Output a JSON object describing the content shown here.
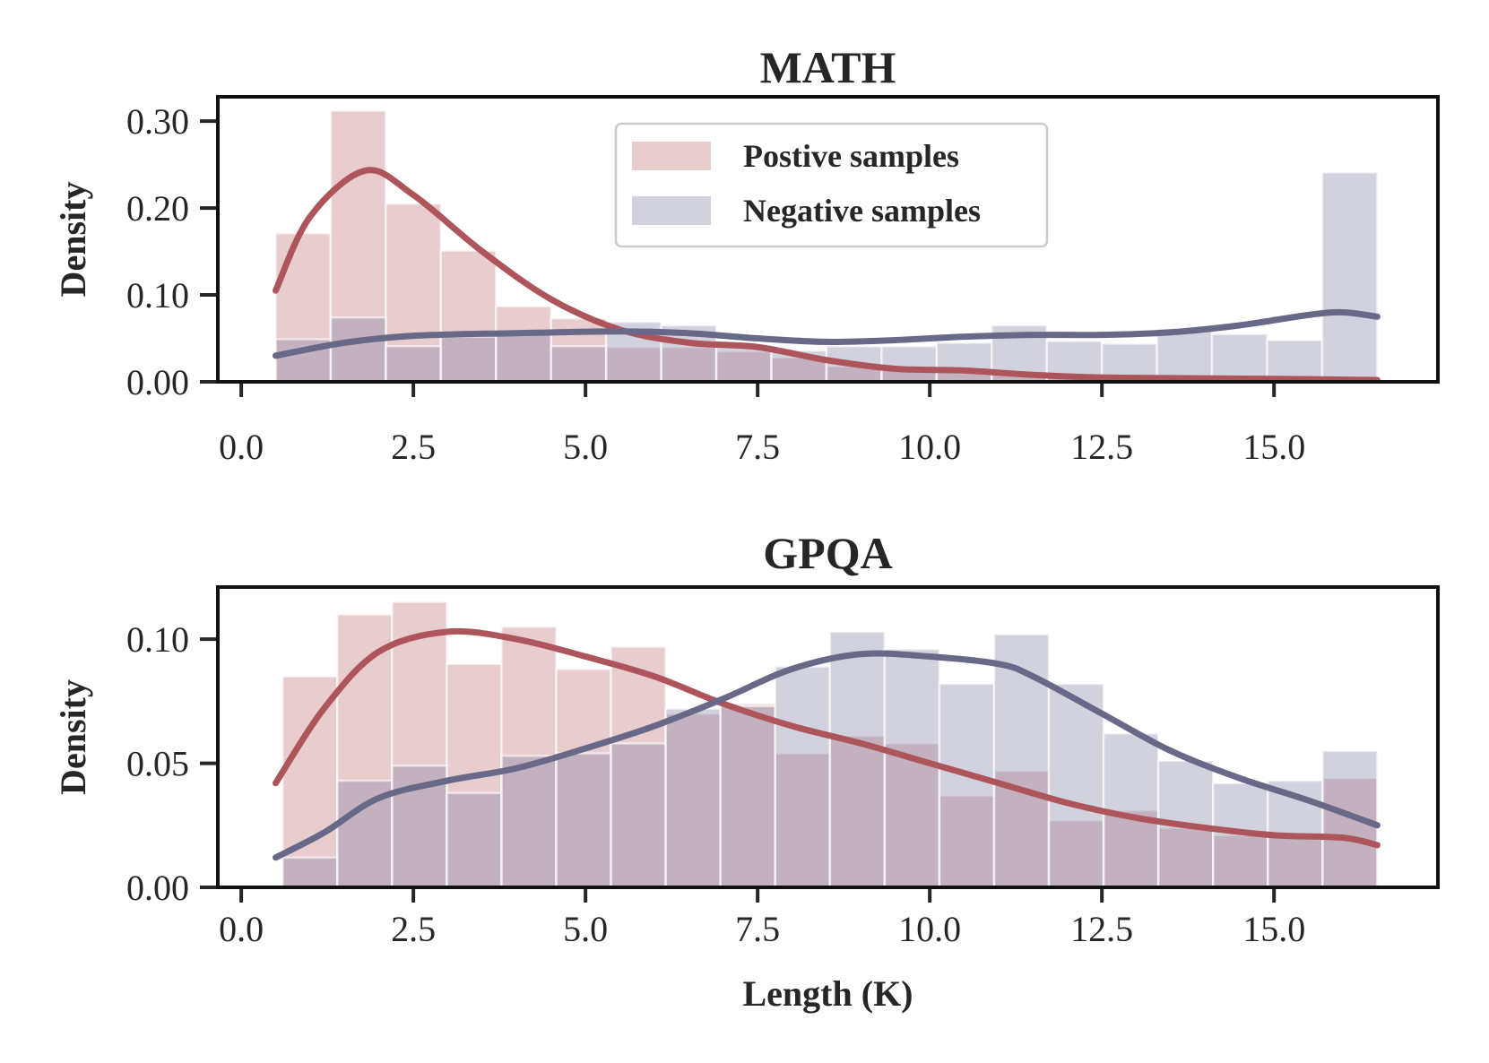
{
  "colors": {
    "positive_bar": "#c06d74",
    "negative_bar": "#7e7fa3",
    "positive_line": "#ad555b",
    "negative_line": "#686889"
  },
  "legend": {
    "placement": "upper-center of top panel",
    "entries": [
      "Postive samples",
      "Negative samples"
    ]
  },
  "chart_data": [
    {
      "type": "bar",
      "subtype": "histogram with KDE",
      "title": "MATH",
      "xlabel": "",
      "ylabel": "Density",
      "xlim": [
        -0.34,
        17.38
      ],
      "ylim": [
        0,
        0.328
      ],
      "xticks": [
        "0.0",
        "2.5",
        "5.0",
        "7.5",
        "10.0",
        "12.5",
        "15.0"
      ],
      "xtick_values": [
        0,
        2.5,
        5,
        7.5,
        10,
        12.5,
        15
      ],
      "yticks": [
        "0.00",
        "0.10",
        "0.20",
        "0.30"
      ],
      "ytick_values": [
        0,
        0.1,
        0.2,
        0.3
      ],
      "bin_start": 0.5,
      "bin_width": 0.8,
      "series": [
        {
          "name": "Postive samples",
          "values": [
            0.171,
            0.312,
            0.205,
            0.151,
            0.087,
            0.073,
            0.04,
            0.04,
            0.035,
            0.028,
            0.018,
            0.015,
            0.012,
            0.01,
            0.008,
            0.006,
            0.005,
            0.004,
            0.004,
            0.004
          ],
          "kde": [
            [
              0.5,
              0.105
            ],
            [
              1.0,
              0.19
            ],
            [
              1.8,
              0.243
            ],
            [
              2.5,
              0.215
            ],
            [
              3.5,
              0.15
            ],
            [
              4.5,
              0.095
            ],
            [
              5.5,
              0.06
            ],
            [
              6.5,
              0.045
            ],
            [
              7.5,
              0.04
            ],
            [
              8.5,
              0.025
            ],
            [
              9.5,
              0.015
            ],
            [
              10.5,
              0.013
            ],
            [
              11.5,
              0.008
            ],
            [
              12.5,
              0.005
            ],
            [
              14,
              0.004
            ],
            [
              15.5,
              0.003
            ],
            [
              16.5,
              0.002
            ]
          ]
        },
        {
          "name": "Negative samples",
          "values": [
            0.049,
            0.074,
            0.041,
            0.052,
            0.055,
            0.041,
            0.069,
            0.065,
            0.04,
            0.036,
            0.041,
            0.041,
            0.045,
            0.065,
            0.047,
            0.044,
            0.061,
            0.055,
            0.048,
            0.241
          ],
          "kde": [
            [
              0.5,
              0.03
            ],
            [
              1.5,
              0.045
            ],
            [
              2.5,
              0.053
            ],
            [
              4,
              0.056
            ],
            [
              5.5,
              0.058
            ],
            [
              6.5,
              0.056
            ],
            [
              7.5,
              0.05
            ],
            [
              8.5,
              0.046
            ],
            [
              9.5,
              0.048
            ],
            [
              10.5,
              0.052
            ],
            [
              11.5,
              0.054
            ],
            [
              12.5,
              0.054
            ],
            [
              13.5,
              0.057
            ],
            [
              14.5,
              0.065
            ],
            [
              15.5,
              0.077
            ],
            [
              16,
              0.08
            ],
            [
              16.5,
              0.075
            ]
          ]
        }
      ]
    },
    {
      "type": "bar",
      "subtype": "histogram with KDE",
      "title": "GPQA",
      "xlabel": "Length (K)",
      "ylabel": "Density",
      "xlim": [
        -0.34,
        17.38
      ],
      "ylim": [
        0,
        0.121
      ],
      "xticks": [
        "0.0",
        "2.5",
        "5.0",
        "7.5",
        "10.0",
        "12.5",
        "15.0"
      ],
      "xtick_values": [
        0,
        2.5,
        5,
        7.5,
        10,
        12.5,
        15
      ],
      "yticks": [
        "0.00",
        "0.05",
        "0.10"
      ],
      "ytick_values": [
        0,
        0.05,
        0.1
      ],
      "bin_start": 0.6,
      "bin_width": 0.795,
      "series": [
        {
          "name": "Postive samples",
          "values": [
            0.085,
            0.11,
            0.115,
            0.09,
            0.105,
            0.088,
            0.097,
            0.07,
            0.074,
            0.054,
            0.061,
            0.058,
            0.037,
            0.047,
            0.027,
            0.031,
            0.024,
            0.021,
            0.021,
            0.044
          ],
          "kde": [
            [
              0.5,
              0.042
            ],
            [
              1.2,
              0.072
            ],
            [
              2,
              0.095
            ],
            [
              3,
              0.103
            ],
            [
              4,
              0.1
            ],
            [
              5,
              0.093
            ],
            [
              6,
              0.085
            ],
            [
              7,
              0.074
            ],
            [
              8,
              0.065
            ],
            [
              9,
              0.058
            ],
            [
              10,
              0.05
            ],
            [
              11,
              0.042
            ],
            [
              12,
              0.034
            ],
            [
              13,
              0.028
            ],
            [
              14,
              0.024
            ],
            [
              15,
              0.021
            ],
            [
              16,
              0.02
            ],
            [
              16.5,
              0.017
            ]
          ]
        },
        {
          "name": "Negative samples",
          "values": [
            0.012,
            0.043,
            0.049,
            0.038,
            0.053,
            0.054,
            0.058,
            0.072,
            0.073,
            0.089,
            0.103,
            0.096,
            0.082,
            0.102,
            0.082,
            0.062,
            0.051,
            0.042,
            0.043,
            0.055
          ],
          "kde": [
            [
              0.5,
              0.012
            ],
            [
              1.2,
              0.022
            ],
            [
              2,
              0.036
            ],
            [
              3,
              0.043
            ],
            [
              4,
              0.048
            ],
            [
              5,
              0.056
            ],
            [
              6,
              0.065
            ],
            [
              7,
              0.076
            ],
            [
              8,
              0.088
            ],
            [
              9,
              0.094
            ],
            [
              10,
              0.093
            ],
            [
              11,
              0.09
            ],
            [
              11.5,
              0.085
            ],
            [
              12.5,
              0.07
            ],
            [
              13.5,
              0.055
            ],
            [
              14.5,
              0.044
            ],
            [
              15.5,
              0.035
            ],
            [
              16.5,
              0.025
            ]
          ]
        }
      ]
    }
  ]
}
